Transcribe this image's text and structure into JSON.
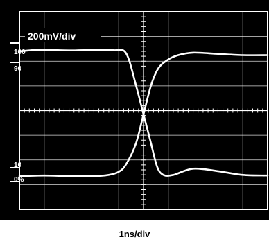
{
  "chart_data": {
    "type": "line",
    "scale_label": "200mV/div",
    "xlabel": "1ns/div",
    "level_labels": [
      "100",
      "90",
      "10",
      "0%"
    ],
    "levels": [
      100,
      90,
      10,
      0
    ],
    "divisions": {
      "x": 10,
      "y": 8
    },
    "colors": {
      "screen": "#000000",
      "grid": "#ffffff",
      "trace": "#ffffff",
      "background": "#ffffff"
    },
    "series": [
      {
        "x": [
          0,
          0.5,
          1,
          2,
          3,
          3.8,
          4.3,
          4.7,
          5.0,
          5.3,
          5.55,
          5.8,
          6.2,
          7,
          8,
          9,
          10
        ],
        "y": [
          100.5,
          101.5,
          101.8,
          101.3,
          101.7,
          101.5,
          99,
          73,
          50,
          27,
          8,
          1.5,
          1.5,
          6.5,
          4.5,
          1.5,
          1
        ]
      },
      {
        "x": [
          0,
          1,
          2,
          3,
          3.6,
          4.0,
          4.3,
          4.7,
          5.0,
          5.3,
          5.6,
          6.0,
          6.4,
          7,
          8,
          9,
          10
        ],
        "y": [
          0.5,
          1,
          0.5,
          0.5,
          1.5,
          4,
          10,
          27,
          50,
          73,
          87,
          94,
          97.5,
          99.5,
          98.5,
          97.5,
          97.5
        ]
      }
    ]
  }
}
